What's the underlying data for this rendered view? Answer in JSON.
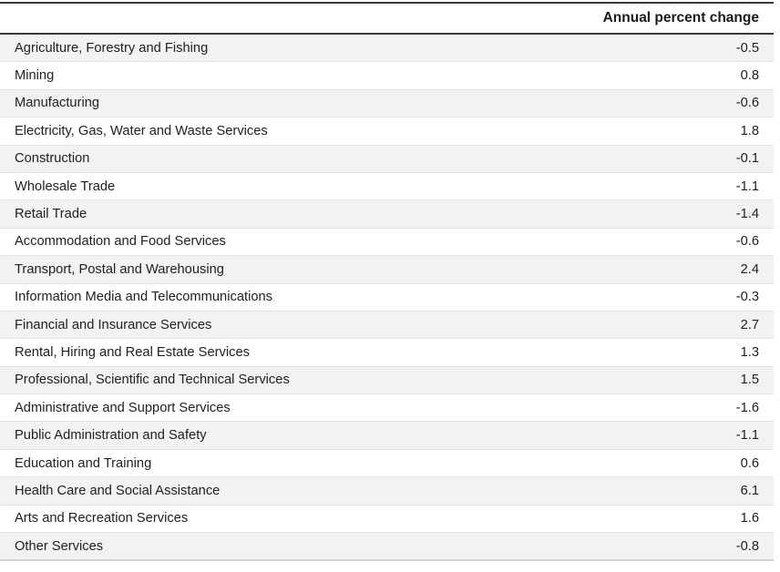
{
  "table": {
    "header": {
      "label_column": "",
      "value_column": "Annual percent change"
    },
    "rows": [
      {
        "label": "Agriculture, Forestry and Fishing",
        "value": "-0.5"
      },
      {
        "label": "Mining",
        "value": "0.8"
      },
      {
        "label": "Manufacturing",
        "value": "-0.6"
      },
      {
        "label": "Electricity, Gas, Water and Waste Services",
        "value": "1.8"
      },
      {
        "label": "Construction",
        "value": "-0.1"
      },
      {
        "label": "Wholesale Trade",
        "value": "-1.1"
      },
      {
        "label": "Retail Trade",
        "value": "-1.4"
      },
      {
        "label": "Accommodation and Food Services",
        "value": "-0.6"
      },
      {
        "label": "Transport, Postal and Warehousing",
        "value": "2.4"
      },
      {
        "label": "Information Media and Telecommunications",
        "value": "-0.3"
      },
      {
        "label": "Financial and Insurance Services",
        "value": "2.7"
      },
      {
        "label": "Rental, Hiring and Real Estate Services",
        "value": "1.3"
      },
      {
        "label": "Professional, Scientific and Technical Services",
        "value": "1.5"
      },
      {
        "label": "Administrative and Support Services",
        "value": "-1.6"
      },
      {
        "label": "Public Administration and Safety",
        "value": "-1.1"
      },
      {
        "label": "Education and Training",
        "value": "0.6"
      },
      {
        "label": "Health Care and Social Assistance",
        "value": "6.1"
      },
      {
        "label": "Arts and Recreation Services",
        "value": "1.6"
      },
      {
        "label": "Other Services",
        "value": "-0.8"
      }
    ]
  },
  "colors": {
    "heavy_rule": "#3a3a3a",
    "row_separator": "#e2e2e2",
    "bottom_rule": "#d2d2d2",
    "alt_row_background": "#f2f2f2",
    "text": "#212121"
  },
  "chart_data": {
    "type": "table",
    "title": "",
    "value_column_header": "Annual percent change",
    "categories": [
      "Agriculture, Forestry and Fishing",
      "Mining",
      "Manufacturing",
      "Electricity, Gas, Water and Waste Services",
      "Construction",
      "Wholesale Trade",
      "Retail Trade",
      "Accommodation and Food Services",
      "Transport, Postal and Warehousing",
      "Information Media and Telecommunications",
      "Financial and Insurance Services",
      "Rental, Hiring and Real Estate Services",
      "Professional, Scientific and Technical Services",
      "Administrative and Support Services",
      "Public Administration and Safety",
      "Education and Training",
      "Health Care and Social Assistance",
      "Arts and Recreation Services",
      "Other Services"
    ],
    "values": [
      -0.5,
      0.8,
      -0.6,
      1.8,
      -0.1,
      -1.1,
      -1.4,
      -0.6,
      2.4,
      -0.3,
      2.7,
      1.3,
      1.5,
      -1.6,
      -1.1,
      0.6,
      6.1,
      1.6,
      -0.8
    ]
  }
}
